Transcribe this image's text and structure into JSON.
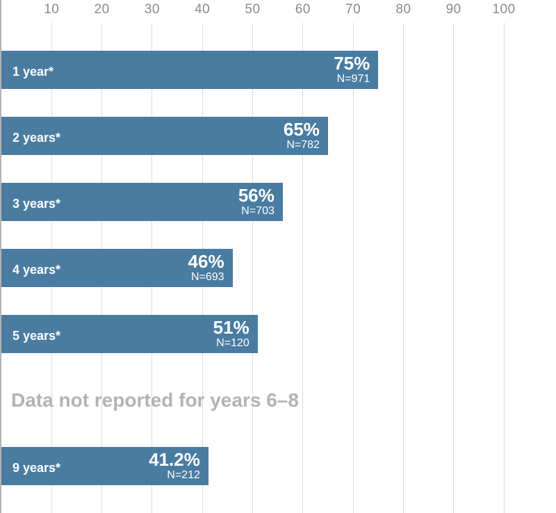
{
  "chart_data": {
    "type": "bar",
    "orientation": "horizontal",
    "title": "",
    "x_axis": {
      "position": "top",
      "range": [
        0,
        100
      ],
      "ticks": [
        10,
        20,
        30,
        40,
        50,
        60,
        70,
        80,
        90,
        100
      ]
    },
    "grid": true,
    "categories": [
      "1 year*",
      "2 years*",
      "3 years*",
      "4 years*",
      "5 years*",
      "9 years*"
    ],
    "values": [
      75,
      65,
      56,
      46,
      51,
      41.2
    ],
    "value_labels": [
      "75%",
      "65%",
      "56%",
      "46%",
      "51%",
      "41.2%"
    ],
    "n_labels": [
      "N=971",
      "N=782",
      "N=703",
      "N=693",
      "N=120",
      "N=212"
    ],
    "row_slots": [
      0,
      1,
      2,
      3,
      4,
      6
    ],
    "note": {
      "text": "Data not reported for years 6–8",
      "slot": 5
    },
    "colors": {
      "bar": "#4a7ca1",
      "bar_text": "#ffffff",
      "axis_line": "#b3b3b3",
      "gridline": "#dcdcdc",
      "tick_label": "#8a8a8a",
      "note_text": "#b3b3b3",
      "background": "#ffffff"
    }
  }
}
